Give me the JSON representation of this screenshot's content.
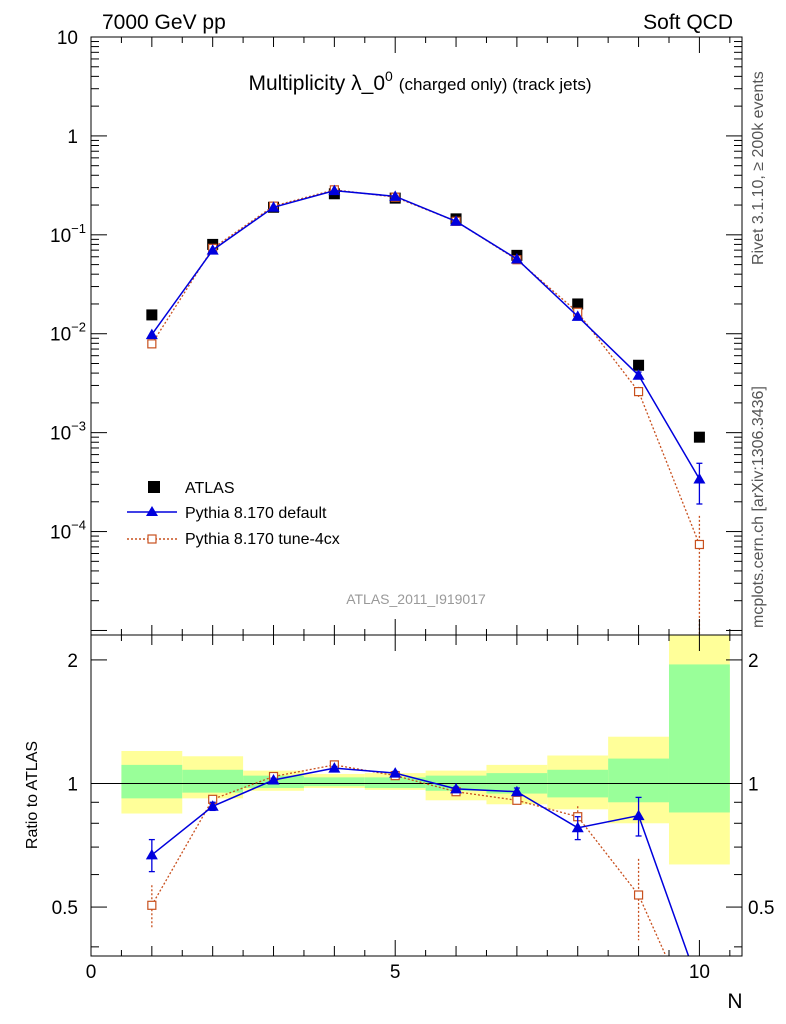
{
  "header": {
    "left": "7000 GeV pp",
    "right": "Soft QCD"
  },
  "title": {
    "main": "Multiplicity λ_0",
    "superscript": "0",
    "sub": "(charged only) (track jets)"
  },
  "side_labels": {
    "rivet": "Rivet 3.1.10, ≥ 200k events",
    "mcplots": "mcplots.cern.ch [arXiv:1306.3436]"
  },
  "watermark": "ATLAS_2011_I919017",
  "legend": [
    {
      "key": "atlas",
      "label": "ATLAS"
    },
    {
      "key": "pythia_default",
      "label": "Pythia 8.170 default"
    },
    {
      "key": "pythia_tune",
      "label": "Pythia 8.170 tune-4cx"
    }
  ],
  "axes": {
    "xlabel": "N",
    "ratio_ylabel": "Ratio to ATLAS",
    "x_ticks": [
      "0",
      "5",
      "10"
    ],
    "main_y_ticks": [
      {
        "value": 10,
        "base": "10",
        "exp": ""
      },
      {
        "value": 1,
        "base": "1",
        "exp": ""
      },
      {
        "value": 0.1,
        "base": "10",
        "exp": "−1"
      },
      {
        "value": 0.01,
        "base": "10",
        "exp": "−2"
      },
      {
        "value": 0.001,
        "base": "10",
        "exp": "−3"
      },
      {
        "value": 0.0001,
        "base": "10",
        "exp": "−4"
      }
    ],
    "ratio_y_ticks": [
      "0.5",
      "1",
      "2"
    ]
  },
  "colors": {
    "atlas": "#000000",
    "pythia_default": "#0000dd",
    "pythia_tune": "#c8501e",
    "band_inner": "#99ff99",
    "band_outer": "#ffff99"
  },
  "chart_data": {
    "type": "scatter",
    "main": {
      "y_scale": "log",
      "xlim": [
        0,
        10.7
      ],
      "ylim": [
        9e-06,
        10
      ],
      "series": [
        {
          "name": "ATLAS",
          "x": [
            1,
            2,
            3,
            4,
            5,
            6,
            7,
            8,
            9,
            10
          ],
          "y": [
            0.0155,
            0.08,
            0.19,
            0.26,
            0.235,
            0.145,
            0.062,
            0.02,
            0.0048,
            0.0009
          ]
        },
        {
          "name": "Pythia 8.170 default",
          "x": [
            1,
            2,
            3,
            4,
            5,
            6,
            7,
            8,
            9,
            10
          ],
          "y": [
            0.0098,
            0.07,
            0.19,
            0.28,
            0.245,
            0.137,
            0.057,
            0.015,
            0.0038,
            0.00034
          ],
          "yerr": [
            0,
            0,
            0,
            0,
            0,
            0,
            0,
            0,
            0.0003,
            0.00015
          ]
        },
        {
          "name": "Pythia 8.170 tune-4cx",
          "x": [
            1,
            2,
            3,
            4,
            5,
            6,
            7,
            8,
            9,
            10
          ],
          "y": [
            0.0079,
            0.073,
            0.195,
            0.285,
            0.24,
            0.137,
            0.056,
            0.0165,
            0.0026,
            7.4e-05
          ],
          "yerr": [
            0,
            0,
            0,
            0,
            0,
            0,
            0,
            0,
            0.0003,
            7e-05
          ]
        }
      ]
    },
    "ratio": {
      "ylim": [
        0.38,
        2.3
      ],
      "band_x_edges": [
        0.5,
        1.5,
        2.5,
        3.5,
        4.5,
        5.5,
        6.5,
        7.5,
        8.5,
        9.5,
        10.5
      ],
      "band_inner_low": [
        0.92,
        0.95,
        0.975,
        0.985,
        0.975,
        0.96,
        0.945,
        0.925,
        0.9,
        0.85
      ],
      "band_inner_high": [
        1.11,
        1.08,
        1.045,
        1.035,
        1.035,
        1.045,
        1.06,
        1.08,
        1.15,
        1.95
      ],
      "band_outer_low": [
        0.845,
        0.92,
        0.96,
        0.975,
        0.965,
        0.91,
        0.89,
        0.865,
        0.8,
        0.635
      ],
      "band_outer_high": [
        1.2,
        1.165,
        1.075,
        1.055,
        1.06,
        1.075,
        1.11,
        1.17,
        1.3,
        2.3
      ],
      "series": [
        {
          "name": "Pythia 8.170 default",
          "x": [
            1,
            2,
            3,
            4,
            5,
            6,
            7,
            8,
            9,
            10
          ],
          "y": [
            0.67,
            0.88,
            1.02,
            1.09,
            1.06,
            0.97,
            0.955,
            0.78,
            0.835,
            0.32
          ],
          "yerr": [
            0.06,
            0.02,
            0.01,
            0.01,
            0.01,
            0.01,
            0.02,
            0.05,
            0.09,
            0
          ]
        },
        {
          "name": "Pythia 8.170 tune-4cx",
          "x": [
            1,
            2,
            3,
            4,
            5,
            6,
            7,
            8,
            9,
            10
          ],
          "y": [
            0.505,
            0.915,
            1.04,
            1.11,
            1.045,
            0.955,
            0.91,
            0.83,
            0.535,
            0.25
          ],
          "yerr": [
            0.06,
            0.02,
            0.01,
            0.01,
            0.01,
            0.01,
            0.02,
            0.05,
            0.12,
            0
          ]
        }
      ]
    }
  }
}
